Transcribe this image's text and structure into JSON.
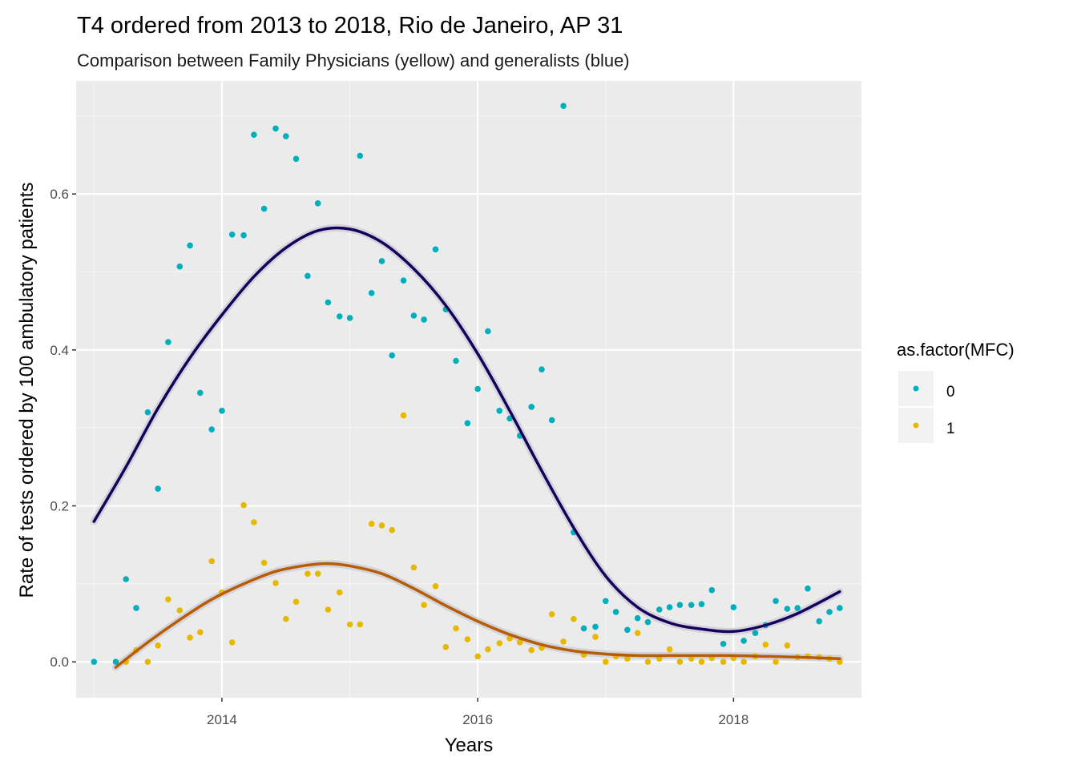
{
  "chart_data": {
    "type": "scatter",
    "title": "T4 ordered from 2013 to 2018, Rio de Janeiro, AP 31",
    "subtitle": "Comparison between Family Physicians (yellow) and generalists (blue)",
    "xlabel": "Years",
    "ylabel": "Rate of tests ordered by 100 ambulatory patients",
    "xlim": [
      2012.86,
      2019.0
    ],
    "ylim": [
      -0.046,
      0.745
    ],
    "x_ticks": [
      2014,
      2016,
      2018
    ],
    "x_ticklabels": [
      "2014",
      "2016",
      "2018"
    ],
    "y_ticks": [
      0.0,
      0.2,
      0.4,
      0.6
    ],
    "y_ticklabels": [
      "0.0",
      "0.2",
      "0.4",
      "0.6"
    ],
    "grid": true,
    "legend": {
      "title": "as.factor(MFC)",
      "position": "right",
      "entries": [
        {
          "label": "0",
          "color": "#00AFBB"
        },
        {
          "label": "1",
          "color": "#E7B800"
        }
      ]
    },
    "series": [
      {
        "key": "0",
        "color": "#00AFBB",
        "points": [
          [
            2013.0,
            0.0
          ],
          [
            2013.17,
            0.0
          ],
          [
            2013.25,
            0.106
          ],
          [
            2013.33,
            0.069
          ],
          [
            2013.42,
            0.32
          ],
          [
            2013.5,
            0.222
          ],
          [
            2013.58,
            0.41
          ],
          [
            2013.67,
            0.507
          ],
          [
            2013.75,
            0.534
          ],
          [
            2013.83,
            0.345
          ],
          [
            2013.92,
            0.298
          ],
          [
            2014.0,
            0.322
          ],
          [
            2014.08,
            0.548
          ],
          [
            2014.17,
            0.547
          ],
          [
            2014.25,
            0.676
          ],
          [
            2014.33,
            0.581
          ],
          [
            2014.42,
            0.684
          ],
          [
            2014.5,
            0.674
          ],
          [
            2014.58,
            0.645
          ],
          [
            2014.67,
            0.495
          ],
          [
            2014.75,
            0.588
          ],
          [
            2014.83,
            0.461
          ],
          [
            2014.92,
            0.443
          ],
          [
            2015.0,
            0.441
          ],
          [
            2015.08,
            0.649
          ],
          [
            2015.17,
            0.473
          ],
          [
            2015.25,
            0.514
          ],
          [
            2015.33,
            0.393
          ],
          [
            2015.42,
            0.489
          ],
          [
            2015.5,
            0.444
          ],
          [
            2015.58,
            0.439
          ],
          [
            2015.67,
            0.529
          ],
          [
            2015.75,
            0.452
          ],
          [
            2015.83,
            0.386
          ],
          [
            2015.92,
            0.306
          ],
          [
            2016.0,
            0.35
          ],
          [
            2016.08,
            0.424
          ],
          [
            2016.17,
            0.322
          ],
          [
            2016.25,
            0.312
          ],
          [
            2016.33,
            0.29
          ],
          [
            2016.42,
            0.327
          ],
          [
            2016.5,
            0.375
          ],
          [
            2016.58,
            0.31
          ],
          [
            2016.67,
            0.713
          ],
          [
            2016.75,
            0.166
          ],
          [
            2016.83,
            0.043
          ],
          [
            2016.92,
            0.045
          ],
          [
            2017.0,
            0.078
          ],
          [
            2017.08,
            0.064
          ],
          [
            2017.17,
            0.041
          ],
          [
            2017.25,
            0.056
          ],
          [
            2017.33,
            0.051
          ],
          [
            2017.42,
            0.067
          ],
          [
            2017.5,
            0.07
          ],
          [
            2017.58,
            0.073
          ],
          [
            2017.67,
            0.073
          ],
          [
            2017.75,
            0.074
          ],
          [
            2017.83,
            0.092
          ],
          [
            2017.92,
            0.023
          ],
          [
            2018.0,
            0.07
          ],
          [
            2018.08,
            0.027
          ],
          [
            2018.17,
            0.037
          ],
          [
            2018.25,
            0.047
          ],
          [
            2018.33,
            0.078
          ],
          [
            2018.42,
            0.068
          ],
          [
            2018.5,
            0.069
          ],
          [
            2018.58,
            0.094
          ],
          [
            2018.67,
            0.052
          ],
          [
            2018.75,
            0.064
          ],
          [
            2018.83,
            0.069
          ]
        ],
        "trend": [
          [
            2013.0,
            0.18
          ],
          [
            2013.25,
            0.25
          ],
          [
            2013.5,
            0.325
          ],
          [
            2013.75,
            0.39
          ],
          [
            2014.0,
            0.445
          ],
          [
            2014.25,
            0.494
          ],
          [
            2014.5,
            0.531
          ],
          [
            2014.75,
            0.553
          ],
          [
            2015.0,
            0.555
          ],
          [
            2015.25,
            0.538
          ],
          [
            2015.5,
            0.504
          ],
          [
            2015.75,
            0.457
          ],
          [
            2016.0,
            0.395
          ],
          [
            2016.25,
            0.322
          ],
          [
            2016.5,
            0.245
          ],
          [
            2016.75,
            0.172
          ],
          [
            2017.0,
            0.11
          ],
          [
            2017.25,
            0.07
          ],
          [
            2017.5,
            0.05
          ],
          [
            2017.75,
            0.042
          ],
          [
            2018.0,
            0.039
          ],
          [
            2018.25,
            0.047
          ],
          [
            2018.5,
            0.062
          ],
          [
            2018.83,
            0.09
          ]
        ]
      },
      {
        "key": "1",
        "color": "#E7B800",
        "points": [
          [
            2013.25,
            0.0
          ],
          [
            2013.33,
            0.015
          ],
          [
            2013.42,
            0.0
          ],
          [
            2013.5,
            0.021
          ],
          [
            2013.58,
            0.08
          ],
          [
            2013.67,
            0.066
          ],
          [
            2013.75,
            0.031
          ],
          [
            2013.83,
            0.038
          ],
          [
            2013.92,
            0.129
          ],
          [
            2014.0,
            0.089
          ],
          [
            2014.08,
            0.025
          ],
          [
            2014.17,
            0.201
          ],
          [
            2014.25,
            0.179
          ],
          [
            2014.33,
            0.127
          ],
          [
            2014.42,
            0.101
          ],
          [
            2014.5,
            0.055
          ],
          [
            2014.58,
            0.077
          ],
          [
            2014.67,
            0.113
          ],
          [
            2014.75,
            0.113
          ],
          [
            2014.83,
            0.067
          ],
          [
            2014.92,
            0.089
          ],
          [
            2015.0,
            0.048
          ],
          [
            2015.08,
            0.048
          ],
          [
            2015.17,
            0.177
          ],
          [
            2015.25,
            0.175
          ],
          [
            2015.33,
            0.169
          ],
          [
            2015.42,
            0.316
          ],
          [
            2015.5,
            0.121
          ],
          [
            2015.58,
            0.073
          ],
          [
            2015.67,
            0.097
          ],
          [
            2015.75,
            0.019
          ],
          [
            2015.83,
            0.043
          ],
          [
            2015.92,
            0.029
          ],
          [
            2016.0,
            0.007
          ],
          [
            2016.08,
            0.016
          ],
          [
            2016.17,
            0.024
          ],
          [
            2016.25,
            0.03
          ],
          [
            2016.33,
            0.025
          ],
          [
            2016.42,
            0.015
          ],
          [
            2016.5,
            0.018
          ],
          [
            2016.58,
            0.061
          ],
          [
            2016.67,
            0.026
          ],
          [
            2016.75,
            0.055
          ],
          [
            2016.83,
            0.009
          ],
          [
            2016.92,
            0.032
          ],
          [
            2017.0,
            0.0
          ],
          [
            2017.08,
            0.007
          ],
          [
            2017.17,
            0.004
          ],
          [
            2017.25,
            0.037
          ],
          [
            2017.33,
            0.0
          ],
          [
            2017.42,
            0.004
          ],
          [
            2017.5,
            0.016
          ],
          [
            2017.58,
            0.0
          ],
          [
            2017.67,
            0.004
          ],
          [
            2017.75,
            0.0
          ],
          [
            2017.83,
            0.005
          ],
          [
            2017.92,
            0.0
          ],
          [
            2018.0,
            0.005
          ],
          [
            2018.08,
            0.0
          ],
          [
            2018.17,
            0.007
          ],
          [
            2018.25,
            0.022
          ],
          [
            2018.33,
            0.0
          ],
          [
            2018.42,
            0.021
          ],
          [
            2018.5,
            0.006
          ],
          [
            2018.58,
            0.007
          ],
          [
            2018.67,
            0.006
          ],
          [
            2018.75,
            0.004
          ],
          [
            2018.83,
            0.0
          ]
        ],
        "trend": [
          [
            2013.17,
            -0.007
          ],
          [
            2013.42,
            0.025
          ],
          [
            2013.67,
            0.054
          ],
          [
            2013.92,
            0.08
          ],
          [
            2014.17,
            0.1
          ],
          [
            2014.42,
            0.116
          ],
          [
            2014.67,
            0.124
          ],
          [
            2014.83,
            0.126
          ],
          [
            2015.0,
            0.123
          ],
          [
            2015.25,
            0.113
          ],
          [
            2015.5,
            0.094
          ],
          [
            2015.75,
            0.072
          ],
          [
            2016.0,
            0.052
          ],
          [
            2016.25,
            0.035
          ],
          [
            2016.5,
            0.022
          ],
          [
            2016.75,
            0.014
          ],
          [
            2017.0,
            0.01
          ],
          [
            2017.25,
            0.008
          ],
          [
            2017.5,
            0.008
          ],
          [
            2017.75,
            0.008
          ],
          [
            2018.0,
            0.008
          ],
          [
            2018.25,
            0.007
          ],
          [
            2018.5,
            0.006
          ],
          [
            2018.83,
            0.004
          ]
        ],
        "trend_color": "#B85C00"
      }
    ],
    "trend_color_0": "#16005A"
  }
}
